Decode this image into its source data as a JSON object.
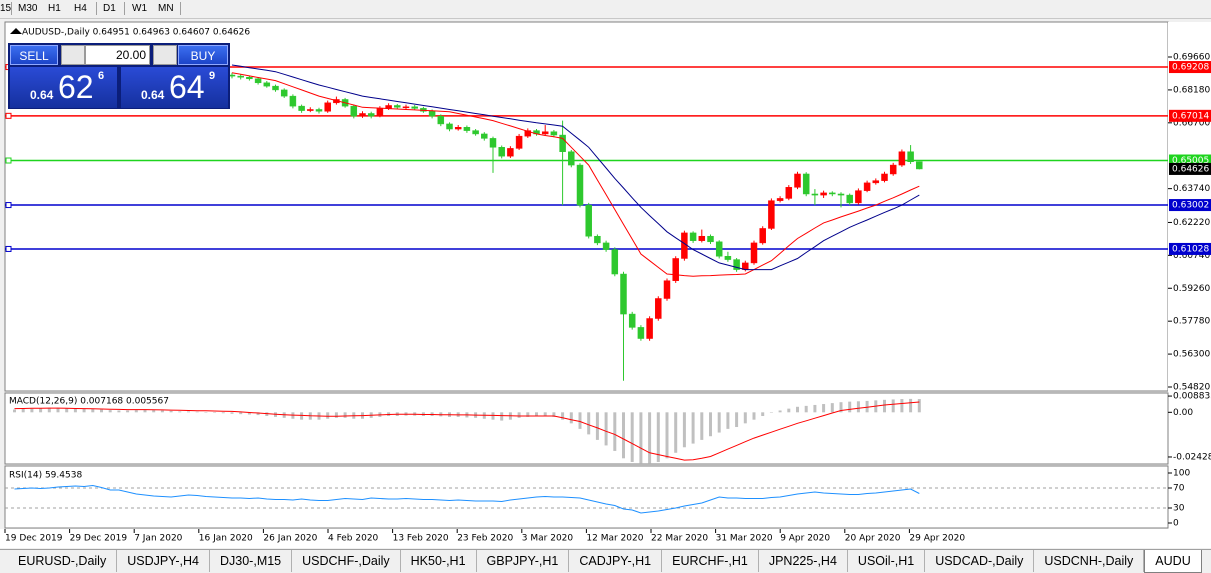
{
  "toolbar": {
    "timeframes": [
      "15",
      "M30",
      "H1",
      "H4",
      "D1",
      "W1",
      "MN"
    ]
  },
  "trade_panel": {
    "sell": "SELL",
    "buy": "BUY",
    "lot": "20.00",
    "bid": {
      "big": "0.64",
      "pips": "62",
      "frac": "6"
    },
    "ask": {
      "big": "0.64",
      "pips": "64",
      "frac": "9"
    }
  },
  "tabs": [
    "EURUSD-,Daily",
    "USDJPY-,H4",
    "DJ30-,M15",
    "USDCHF-,Daily",
    "HK50-,H1",
    "GBPJPY-,H1",
    "CADJPY-,H1",
    "EURCHF-,H1",
    "JPN225-,H4",
    "USOil-,H1",
    "USDCAD-,Daily",
    "USDCNH-,Daily",
    "AUDU"
  ],
  "chart_data": {
    "type": "candlestick",
    "title": "AUDUSD-,Daily  0.64951 0.64963 0.64607 0.64626",
    "ylim": [
      0.54685,
      0.71234
    ],
    "yticks": [
      {
        "value": 0.6966,
        "label": "0.69660"
      },
      {
        "value": 0.6818,
        "label": "0.68180"
      },
      {
        "value": 0.667,
        "label": "0.66700"
      },
      {
        "value": 0.6374,
        "label": "0.63740"
      },
      {
        "value": 0.6222,
        "label": "0.62220"
      },
      {
        "value": 0.6074,
        "label": "0.60740"
      },
      {
        "value": 0.5926,
        "label": "0.59260"
      },
      {
        "value": 0.5778,
        "label": "0.57780"
      },
      {
        "value": 0.563,
        "label": "0.56300"
      },
      {
        "value": 0.5482,
        "label": "0.54820"
      }
    ],
    "bull_color": "#ff0000",
    "bear_color": "#2ec82e",
    "candles": [
      [
        0.6885,
        0.6895,
        0.687,
        0.688
      ],
      [
        0.688,
        0.6888,
        0.6865,
        0.6875
      ],
      [
        0.6875,
        0.6882,
        0.686,
        0.6868
      ],
      [
        0.6868,
        0.6875,
        0.6842,
        0.685
      ],
      [
        0.685,
        0.6858,
        0.6828,
        0.6835
      ],
      [
        0.6835,
        0.6842,
        0.681,
        0.6818
      ],
      [
        0.6818,
        0.6825,
        0.6782,
        0.679
      ],
      [
        0.679,
        0.6798,
        0.6735,
        0.6745
      ],
      [
        0.6745,
        0.6752,
        0.6715,
        0.6725
      ],
      [
        0.6725,
        0.674,
        0.6718,
        0.673
      ],
      [
        0.673,
        0.6738,
        0.6712,
        0.6722
      ],
      [
        0.6722,
        0.677,
        0.6715,
        0.676
      ],
      [
        0.676,
        0.6788,
        0.6752,
        0.6775
      ],
      [
        0.6775,
        0.6782,
        0.6738,
        0.6745
      ],
      [
        0.6745,
        0.6752,
        0.669,
        0.67
      ],
      [
        0.67,
        0.6722,
        0.6692,
        0.6712
      ],
      [
        0.6712,
        0.672,
        0.669,
        0.67
      ],
      [
        0.67,
        0.6745,
        0.6695,
        0.6735
      ],
      [
        0.6735,
        0.6758,
        0.6728,
        0.6748
      ],
      [
        0.6748,
        0.6755,
        0.6732,
        0.674
      ],
      [
        0.674,
        0.6752,
        0.6732,
        0.6742
      ],
      [
        0.6742,
        0.675,
        0.6728,
        0.6735
      ],
      [
        0.6735,
        0.6742,
        0.6715,
        0.6722
      ],
      [
        0.6722,
        0.673,
        0.669,
        0.67
      ],
      [
        0.67,
        0.6708,
        0.6655,
        0.6665
      ],
      [
        0.6665,
        0.6672,
        0.6632,
        0.6642
      ],
      [
        0.6642,
        0.666,
        0.6635,
        0.665
      ],
      [
        0.665,
        0.6658,
        0.6625,
        0.6635
      ],
      [
        0.6635,
        0.6642,
        0.6612,
        0.662
      ],
      [
        0.662,
        0.6628,
        0.659,
        0.66
      ],
      [
        0.66,
        0.6608,
        0.6445,
        0.656
      ],
      [
        0.656,
        0.6568,
        0.651,
        0.652
      ],
      [
        0.652,
        0.6565,
        0.6512,
        0.6555
      ],
      [
        0.6555,
        0.662,
        0.6548,
        0.661
      ],
      [
        0.661,
        0.6645,
        0.6602,
        0.6635
      ],
      [
        0.6635,
        0.6642,
        0.6612,
        0.662
      ],
      [
        0.662,
        0.666,
        0.6612,
        0.663
      ],
      [
        0.663,
        0.6638,
        0.6605,
        0.6615
      ],
      [
        0.6615,
        0.668,
        0.63,
        0.654
      ],
      [
        0.654,
        0.6548,
        0.647,
        0.648
      ],
      [
        0.648,
        0.6488,
        0.629,
        0.63
      ],
      [
        0.63,
        0.631,
        0.615,
        0.616
      ],
      [
        0.616,
        0.6168,
        0.612,
        0.613
      ],
      [
        0.613,
        0.614,
        0.609,
        0.61
      ],
      [
        0.61,
        0.611,
        0.598,
        0.599
      ],
      [
        0.599,
        0.6,
        0.551,
        0.581
      ],
      [
        0.581,
        0.582,
        0.574,
        0.575
      ],
      [
        0.575,
        0.576,
        0.569,
        0.57
      ],
      [
        0.57,
        0.58,
        0.569,
        0.579
      ],
      [
        0.579,
        0.589,
        0.578,
        0.588
      ],
      [
        0.588,
        0.597,
        0.587,
        0.596
      ],
      [
        0.596,
        0.607,
        0.595,
        0.606
      ],
      [
        0.606,
        0.6185,
        0.605,
        0.6175
      ],
      [
        0.6175,
        0.6182,
        0.613,
        0.614
      ],
      [
        0.614,
        0.619,
        0.6132,
        0.616
      ],
      [
        0.616,
        0.6168,
        0.6125,
        0.6135
      ],
      [
        0.6135,
        0.6142,
        0.606,
        0.607
      ],
      [
        0.607,
        0.609,
        0.6045,
        0.6055
      ],
      [
        0.6055,
        0.6062,
        0.6,
        0.601
      ],
      [
        0.601,
        0.605,
        0.6002,
        0.604
      ],
      [
        0.604,
        0.614,
        0.6032,
        0.613
      ],
      [
        0.613,
        0.6205,
        0.6122,
        0.6195
      ],
      [
        0.6195,
        0.633,
        0.6188,
        0.632
      ],
      [
        0.632,
        0.634,
        0.6312,
        0.633
      ],
      [
        0.633,
        0.639,
        0.6322,
        0.638
      ],
      [
        0.638,
        0.645,
        0.6372,
        0.644
      ],
      [
        0.644,
        0.6448,
        0.634,
        0.635
      ],
      [
        0.635,
        0.6372,
        0.63,
        0.6345
      ],
      [
        0.6345,
        0.6365,
        0.6332,
        0.6355
      ],
      [
        0.6355,
        0.6362,
        0.634,
        0.635
      ],
      [
        0.635,
        0.6358,
        0.629,
        0.6345
      ],
      [
        0.6345,
        0.6352,
        0.63,
        0.631
      ],
      [
        0.631,
        0.6375,
        0.6302,
        0.6365
      ],
      [
        0.6365,
        0.641,
        0.6358,
        0.64
      ],
      [
        0.64,
        0.642,
        0.6392,
        0.641
      ],
      [
        0.641,
        0.645,
        0.6402,
        0.644
      ],
      [
        0.644,
        0.649,
        0.6432,
        0.648
      ],
      [
        0.648,
        0.655,
        0.6472,
        0.654
      ],
      [
        0.654,
        0.657,
        0.6485,
        0.6495
      ],
      [
        0.64951,
        0.64963,
        0.64607,
        0.64626
      ]
    ],
    "moving_averages": [
      {
        "color": "#ff0000",
        "values": [
          0.6895,
          0.6888,
          0.6881,
          0.6874,
          0.6867,
          0.686,
          0.6846,
          0.6832,
          0.6818,
          0.6804,
          0.679,
          0.678,
          0.677,
          0.676,
          0.675,
          0.674,
          0.6738,
          0.6736,
          0.6734,
          0.6732,
          0.673,
          0.6728,
          0.6726,
          0.6724,
          0.6722,
          0.672,
          0.6712,
          0.6704,
          0.6696,
          0.6688,
          0.668,
          0.6668,
          0.6656,
          0.6644,
          0.6632,
          0.662,
          0.6613,
          0.6607,
          0.66,
          0.656,
          0.652,
          0.648,
          0.6413,
          0.6347,
          0.628,
          0.6213,
          0.6147,
          0.608,
          0.605,
          0.602,
          0.599,
          0.5987,
          0.5983,
          0.598,
          0.5982,
          0.5983,
          0.5985,
          0.5987,
          0.5988,
          0.599,
          0.601,
          0.603,
          0.605,
          0.6083,
          0.6117,
          0.615,
          0.6173,
          0.6197,
          0.622,
          0.6233,
          0.6247,
          0.626,
          0.6273,
          0.6287,
          0.63,
          0.6317,
          0.6333,
          0.635,
          0.6368,
          0.6385
        ]
      },
      {
        "color": "#00008b",
        "values": [
          0.693,
          0.6924,
          0.6918,
          0.6912,
          0.6906,
          0.69,
          0.6888,
          0.6876,
          0.6864,
          0.6852,
          0.684,
          0.683,
          0.682,
          0.681,
          0.68,
          0.679,
          0.6784,
          0.6778,
          0.6772,
          0.6766,
          0.676,
          0.6754,
          0.6748,
          0.6742,
          0.6736,
          0.673,
          0.6724,
          0.6718,
          0.6712,
          0.6706,
          0.67,
          0.6694,
          0.6688,
          0.6682,
          0.6676,
          0.667,
          0.6665,
          0.666,
          0.6655,
          0.6623,
          0.6592,
          0.656,
          0.6513,
          0.6467,
          0.642,
          0.6377,
          0.6333,
          0.629,
          0.6253,
          0.6217,
          0.618,
          0.6153,
          0.6127,
          0.61,
          0.608,
          0.606,
          0.604,
          0.603,
          0.602,
          0.601,
          0.601,
          0.601,
          0.601,
          0.6027,
          0.6043,
          0.606,
          0.6087,
          0.6113,
          0.614,
          0.616,
          0.618,
          0.62,
          0.6217,
          0.6233,
          0.625,
          0.6267,
          0.6283,
          0.63,
          0.6323,
          0.6345
        ]
      }
    ],
    "levels": [
      {
        "value": 0.69208,
        "color": "#ff0000"
      },
      {
        "value": 0.67014,
        "color": "#ff0000"
      },
      {
        "value": 0.65005,
        "color": "#1ed41e"
      },
      {
        "value": 0.63002,
        "color": "#0000cd"
      },
      {
        "value": 0.61028,
        "color": "#0000cd"
      }
    ],
    "current_price": 0.64626,
    "x_labels": [
      "19 Dec 2019",
      "29 Dec 2019",
      "7 Jan 2020",
      "16 Jan 2020",
      "26 Jan 2020",
      "4 Feb 2020",
      "13 Feb 2020",
      "23 Feb 2020",
      "3 Mar 2020",
      "12 Mar 2020",
      "22 Mar 2020",
      "31 Mar 2020",
      "9 Apr 2020",
      "20 Apr 2020",
      "29 Apr 2020"
    ],
    "macd": {
      "title": "MACD(12,26,9) 0.007168 0.005567",
      "ylim": [
        -0.0281,
        0.0105
      ],
      "yticks": [
        0.008833,
        {
          "value": 0,
          "label": "0.00"
        },
        -0.024281
      ],
      "histogram_color": "#c0c0c0",
      "signal_color": "#ff0000",
      "histogram": [
        0.0015,
        0.002,
        0.002,
        0.0022,
        0.0025,
        0.0025,
        0.0022,
        0.002,
        0.002,
        0.0018,
        0.0015,
        0.0012,
        0.001,
        0.001,
        0.0012,
        0.0015,
        0.0012,
        0.001,
        0.0008,
        0.0005,
        0.0005,
        0.0003,
        0,
        -0.0003,
        -0.0005,
        -0.0008,
        -0.001,
        -0.0012,
        -0.0015,
        -0.002,
        -0.0025,
        -0.003,
        -0.0035,
        -0.004,
        -0.004,
        -0.004,
        -0.0035,
        -0.003,
        -0.003,
        -0.0035,
        -0.0035,
        -0.003,
        -0.0025,
        -0.002,
        -0.002,
        -0.0018,
        -0.0018,
        -0.002,
        -0.002,
        -0.0022,
        -0.0025,
        -0.0025,
        -0.0028,
        -0.003,
        -0.0035,
        -0.004,
        -0.0045,
        -0.004,
        -0.003,
        -0.0025,
        -0.0022,
        -0.002,
        -0.0025,
        -0.004,
        -0.006,
        -0.009,
        -0.012,
        -0.015,
        -0.018,
        -0.021,
        -0.025,
        -0.027,
        -0.028,
        -0.028,
        -0.027,
        -0.025,
        -0.022,
        -0.019,
        -0.017,
        -0.015,
        -0.013,
        -0.011,
        -0.009,
        -0.008,
        -0.006,
        -0.004,
        -0.002,
        0,
        0.001,
        0.002,
        0.003,
        0.0035,
        0.004,
        0.0045,
        0.005,
        0.0055,
        0.0058,
        0.006,
        0.0062,
        0.0065,
        0.0068,
        0.007,
        0.0072,
        0.0073,
        0.0072
      ],
      "signal": [
        0.002,
        0.0021,
        0.0022,
        0.0022,
        0.0023,
        0.0023,
        0.0022,
        0.0021,
        0.002,
        0.0019,
        0.0018,
        0.0017,
        0.0016,
        0.0015,
        0.0015,
        0.0015,
        0.0014,
        0.0013,
        0.0012,
        0.0011,
        0.001,
        0.0009,
        0.0008,
        0.0007,
        0.0006,
        0.0005,
        0.0002,
        -0.0001,
        -0.0004,
        -0.0007,
        -0.001,
        -0.0013,
        -0.0015,
        -0.0017,
        -0.0019,
        -0.002,
        -0.0021,
        -0.0021,
        -0.002,
        -0.0019,
        -0.0018,
        -0.0016,
        -0.0014,
        -0.0012,
        -0.0011,
        -0.0011,
        -0.0011,
        -0.0012,
        -0.0012,
        -0.0013,
        -0.0013,
        -0.0014,
        -0.0014,
        -0.0015,
        -0.0016,
        -0.0017,
        -0.0018,
        -0.0019,
        -0.002,
        -0.002,
        -0.002,
        -0.002,
        -0.002,
        -0.003,
        -0.004,
        -0.005,
        -0.0068,
        -0.0085,
        -0.0103,
        -0.012,
        -0.0145,
        -0.017,
        -0.0195,
        -0.022,
        -0.023,
        -0.024,
        -0.025,
        -0.026,
        -0.0258,
        -0.025,
        -0.024,
        -0.022,
        -0.02,
        -0.018,
        -0.016,
        -0.014,
        -0.0124,
        -0.0108,
        -0.0092,
        -0.0076,
        -0.006,
        -0.0046,
        -0.0032,
        -0.0018,
        -0.0004,
        0.001,
        0.0016,
        0.0022,
        0.0028,
        0.0034,
        0.004,
        0.0044,
        0.0048,
        0.0052,
        0.0056
      ]
    },
    "rsi": {
      "title": "RSI(14) 59.4538",
      "ylim": [
        -10,
        114
      ],
      "yticks": [
        100,
        70,
        30,
        0
      ],
      "levels": [
        70,
        30
      ],
      "color": "#1e90ff",
      "values": [
        68,
        69,
        70,
        69,
        70,
        72,
        73,
        74,
        73,
        75,
        71,
        66,
        66,
        62,
        58,
        56,
        54,
        53,
        52,
        54,
        56,
        55,
        53,
        52,
        51,
        50,
        50,
        49,
        50,
        48,
        47,
        47,
        46,
        48,
        46,
        45,
        45,
        47,
        49,
        48,
        47,
        50,
        49,
        48,
        48,
        49,
        48,
        47,
        47,
        46,
        45,
        46,
        45,
        44,
        44,
        44,
        43,
        46,
        48,
        50,
        52,
        53,
        52,
        52,
        51,
        50,
        46,
        42,
        38,
        35,
        28,
        26,
        20,
        22,
        24,
        27,
        30,
        34,
        37,
        40,
        46,
        52,
        50,
        50,
        49,
        49,
        49,
        51,
        52,
        55,
        58,
        60,
        62,
        60,
        59,
        58,
        57,
        57,
        59,
        60,
        62,
        64,
        66,
        68,
        59
      ]
    }
  }
}
